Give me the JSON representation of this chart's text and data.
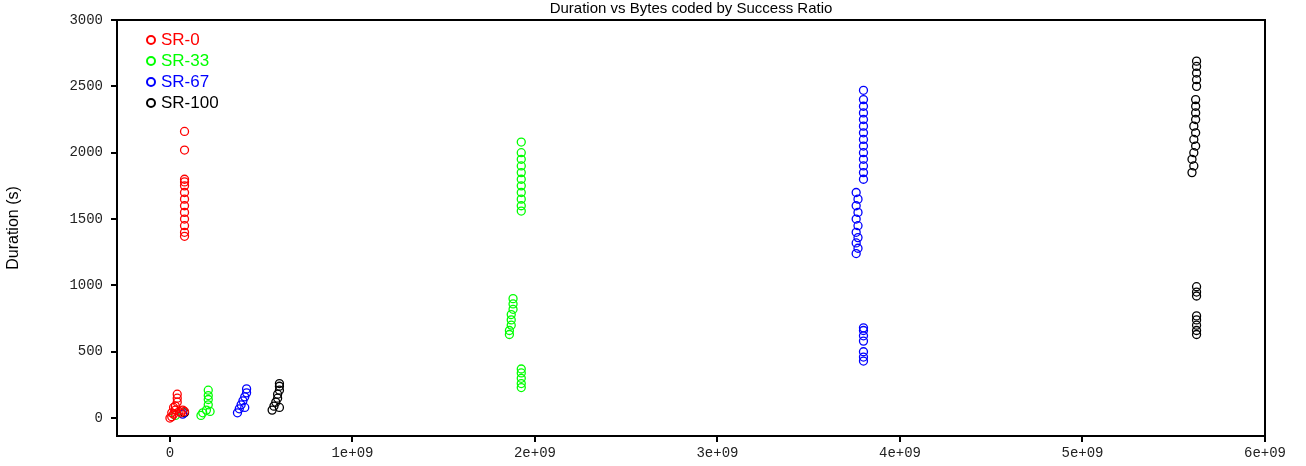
{
  "chart_data": {
    "type": "scatter",
    "title": "Duration vs Bytes coded by Success Ratio",
    "ylabel": "Duration (s)",
    "xlim": [
      -290000000,
      6000000000
    ],
    "ylim": [
      -135,
      3000
    ],
    "xticks": [
      0,
      {
        "value": 1000000000,
        "label": "1e+09"
      },
      {
        "value": 2000000000,
        "label": "2e+09"
      },
      {
        "value": 3000000000,
        "label": "3e+09"
      },
      {
        "value": 4000000000,
        "label": "4e+09"
      },
      {
        "value": 5000000000,
        "label": "5e+09"
      },
      {
        "value": 6000000000,
        "label": "6e+09"
      }
    ],
    "yticks": [
      0,
      500,
      1000,
      1500,
      2000,
      2500,
      3000
    ],
    "grid": false,
    "legend": "top left",
    "marker": "circle",
    "series": [
      {
        "name": "SR-0",
        "color": "#ff0000",
        "x": [
          0,
          10000000,
          20000000,
          30000000,
          30000000,
          40000000,
          40000000,
          40000000,
          50000000,
          60000000,
          70000000,
          80000000,
          20000000,
          10000000,
          80000000,
          80000000,
          80000000,
          80000000,
          80000000,
          80000000,
          80000000,
          80000000,
          80000000,
          80000000,
          80000000,
          80000000,
          80000000
        ],
        "values": [
          0,
          10,
          30,
          60,
          90,
          120,
          150,
          180,
          50,
          40,
          60,
          50,
          80,
          40,
          1370,
          1400,
          1450,
          1500,
          1550,
          1600,
          1650,
          1700,
          1750,
          1780,
          1800,
          2020,
          2160
        ]
      },
      {
        "name": "SR-33",
        "color": "#00ff00",
        "x": [
          170000000,
          180000000,
          200000000,
          210000000,
          210000000,
          210000000,
          210000000,
          220000000,
          30000000,
          1860000000,
          1860000000,
          1870000000,
          1870000000,
          1870000000,
          1880000000,
          1880000000,
          1880000000,
          1925000000,
          1925000000,
          1925000000,
          1925000000,
          1925000000,
          1925000000,
          1925000000,
          1925000000,
          1925000000,
          1925000000,
          1925000000,
          1925000000,
          1925000000,
          1925000000,
          1925000000,
          1925000000
        ],
        "values": [
          20,
          40,
          60,
          100,
          140,
          170,
          210,
          50,
          20,
          630,
          660,
          700,
          740,
          780,
          820,
          860,
          900,
          230,
          260,
          300,
          340,
          370,
          1560,
          1600,
          1650,
          1700,
          1750,
          1800,
          1850,
          1900,
          1950,
          2000,
          2080
        ]
      },
      {
        "name": "SR-67",
        "color": "#0000ff",
        "x": [
          370000000,
          380000000,
          390000000,
          400000000,
          410000000,
          420000000,
          420000000,
          410000000,
          70000000,
          3760000000,
          3770000000,
          3760000000,
          3770000000,
          3760000000,
          3770000000,
          3760000000,
          3770000000,
          3760000000,
          3770000000,
          3760000000,
          3800000000,
          3800000000,
          3800000000,
          3800000000,
          3800000000,
          3800000000,
          3800000000,
          3800000000,
          3800000000,
          3800000000,
          3800000000,
          3800000000,
          3800000000,
          3800000000,
          3800000000,
          3800000000,
          3800000000,
          3800000000,
          3800000000,
          3800000000,
          3800000000
        ],
        "values": [
          40,
          70,
          100,
          130,
          160,
          190,
          220,
          80,
          30,
          1240,
          1280,
          1320,
          1360,
          1400,
          1450,
          1500,
          1550,
          1600,
          1650,
          1700,
          430,
          460,
          500,
          580,
          620,
          660,
          680,
          1800,
          1850,
          1900,
          1950,
          2000,
          2050,
          2100,
          2150,
          2200,
          2250,
          2300,
          2350,
          2400,
          2470
        ]
      },
      {
        "name": "SR-100",
        "color": "#000000",
        "x": [
          560000000,
          570000000,
          580000000,
          590000000,
          590000000,
          600000000,
          600000000,
          600000000,
          600000000,
          80000000,
          5600000000,
          5610000000,
          5600000000,
          5610000000,
          5620000000,
          5610000000,
          5620000000,
          5610000000,
          5620000000,
          5620000000,
          5620000000,
          5620000000,
          5625000000,
          5625000000,
          5625000000,
          5625000000,
          5625000000,
          5625000000,
          5625000000,
          5625000000,
          5625000000,
          5625000000,
          5625000000,
          5625000000,
          5625000000
        ],
        "values": [
          60,
          90,
          120,
          150,
          180,
          210,
          240,
          260,
          80,
          40,
          1850,
          1900,
          1950,
          2000,
          2050,
          2100,
          2150,
          2200,
          2250,
          2300,
          2350,
          2400,
          2500,
          2550,
          2600,
          2650,
          2690,
          630,
          660,
          700,
          740,
          770,
          920,
          950,
          990
        ]
      }
    ]
  }
}
